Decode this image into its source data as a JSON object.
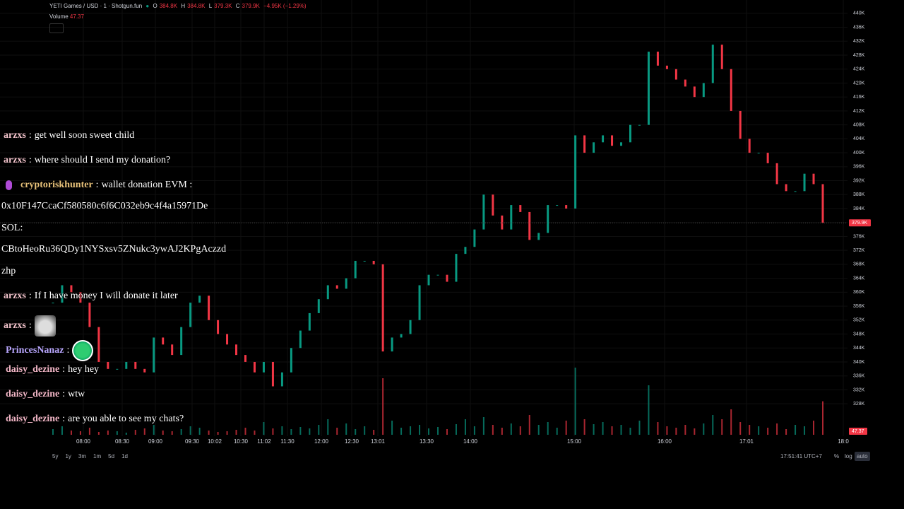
{
  "header": {
    "symbol": "YETI Games / USD · 1 · Shotgun.fun",
    "o_label": "O",
    "o": "384.8K",
    "h_label": "H",
    "h": "384.8K",
    "l_label": "L",
    "l": "379.3K",
    "c_label": "C",
    "change": "−4.95K (−1.29%)",
    "volume_label": "Volume"
  },
  "chart_data": {
    "type": "candlestick",
    "color_up": "#089981",
    "color_down": "#f23645",
    "closes": [
      357000,
      362000,
      360000,
      357000,
      350000,
      340000,
      338000,
      338000,
      340000,
      338000,
      337000,
      347000,
      345000,
      342000,
      350000,
      357000,
      359000,
      352000,
      348000,
      345000,
      342000,
      340000,
      337000,
      340000,
      333000,
      337000,
      344000,
      349000,
      354000,
      358000,
      362000,
      361000,
      364000,
      369000,
      369000,
      368000,
      343000,
      347000,
      348000,
      352000,
      362000,
      365000,
      365000,
      363000,
      371000,
      373000,
      378000,
      388000,
      382000,
      378000,
      385000,
      383000,
      375000,
      377000,
      385000,
      385000,
      384000,
      405000,
      400000,
      403000,
      405000,
      402000,
      403000,
      408000,
      408000,
      429000,
      425000,
      424000,
      421000,
      419000,
      416000,
      420000,
      431000,
      424000,
      412000,
      404000,
      400000,
      400000,
      397000,
      391000,
      389000,
      389000,
      394000,
      391000,
      379900
    ],
    "volume": [
      8,
      12,
      6,
      5,
      10,
      4,
      6,
      5,
      3,
      7,
      9,
      14,
      6,
      5,
      8,
      12,
      10,
      6,
      4,
      5,
      7,
      10,
      6,
      18,
      9,
      12,
      8,
      11,
      9,
      14,
      22,
      10,
      16,
      8,
      12,
      7,
      80,
      20,
      10,
      12,
      14,
      9,
      11,
      8,
      15,
      22,
      12,
      25,
      14,
      10,
      16,
      12,
      28,
      14,
      18,
      10,
      20,
      95,
      22,
      15,
      18,
      12,
      14,
      10,
      20,
      70,
      18,
      12,
      10,
      14,
      9,
      16,
      28,
      22,
      36,
      18,
      14,
      12,
      10,
      16,
      8,
      14,
      12,
      20,
      47.37
    ],
    "volume_lim": [
      0,
      110
    ],
    "ylim": [
      326000,
      442000
    ],
    "yticks": [
      {
        "value": 328000,
        "label": "328K"
      },
      {
        "value": 332000,
        "label": "332K"
      },
      {
        "value": 336000,
        "label": "336K"
      },
      {
        "value": 340000,
        "label": "340K"
      },
      {
        "value": 344000,
        "label": "344K"
      },
      {
        "value": 348000,
        "label": "348K"
      },
      {
        "value": 352000,
        "label": "352K"
      },
      {
        "value": 356000,
        "label": "356K"
      },
      {
        "value": 360000,
        "label": "360K"
      },
      {
        "value": 364000,
        "label": "364K"
      },
      {
        "value": 368000,
        "label": "368K"
      },
      {
        "value": 372000,
        "label": "372K"
      },
      {
        "value": 376000,
        "label": "376K"
      },
      {
        "value": 380000,
        "label": "380K"
      },
      {
        "value": 384000,
        "label": "384K"
      },
      {
        "value": 388000,
        "label": "388K"
      },
      {
        "value": 392000,
        "label": "392K"
      },
      {
        "value": 396000,
        "label": "396K"
      },
      {
        "value": 400000,
        "label": "400K"
      },
      {
        "value": 404000,
        "label": "404K"
      },
      {
        "value": 408000,
        "label": "408K"
      },
      {
        "value": 412000,
        "label": "412K"
      },
      {
        "value": 416000,
        "label": "416K"
      },
      {
        "value": 420000,
        "label": "420K"
      },
      {
        "value": 424000,
        "label": "424K"
      },
      {
        "value": 428000,
        "label": "428K"
      },
      {
        "value": 432000,
        "label": "432K"
      },
      {
        "value": 436000,
        "label": "436K"
      },
      {
        "value": 440000,
        "label": "440K"
      }
    ],
    "last_price": {
      "value": 379900,
      "label": "379.9K"
    },
    "time_labels": [
      "08:00",
      "08:30",
      "09:00",
      "09:30",
      "10:02",
      "10:30",
      "11:02",
      "11:30",
      "12:00",
      "12:30",
      "13:01",
      "13:30",
      "14:00",
      "15:00",
      "16:00",
      "17:01",
      "18:0"
    ]
  },
  "chat": {
    "separator": ":",
    "messages": [
      {
        "user": "arzxs",
        "text": "get well soon sweet child"
      },
      {
        "user": "arzxs",
        "text": "where should I send my donation?"
      },
      {
        "user": "cryptoriskhunter",
        "text": "wallet donation EVM :",
        "lines": [
          "0x10F147CcaCf580580c6f6C032eb9c4f4a15971De",
          "SOL:",
          "CBtoHeoRu36QDy1NYSxsv5ZNukc3ywAJ2KPgAczzd",
          "zhp"
        ]
      },
      {
        "user": "arzxs",
        "text": "If I have money I will donate it later"
      },
      {
        "user": "arzxs"
      },
      {
        "user": "PrincesNanaz"
      },
      {
        "user": "daisy_dezine",
        "text": "hey hey"
      },
      {
        "user": "daisy_dezine",
        "text": "wtw"
      },
      {
        "user": "daisy_dezine",
        "text": "are you able to see my chats?"
      }
    ]
  },
  "footer": {
    "ranges": [
      "5y",
      "1y",
      "3m",
      "1m",
      "5d",
      "1d"
    ],
    "clock": "17:51:41 UTC+7",
    "options": [
      "%",
      "log",
      "auto"
    ]
  }
}
